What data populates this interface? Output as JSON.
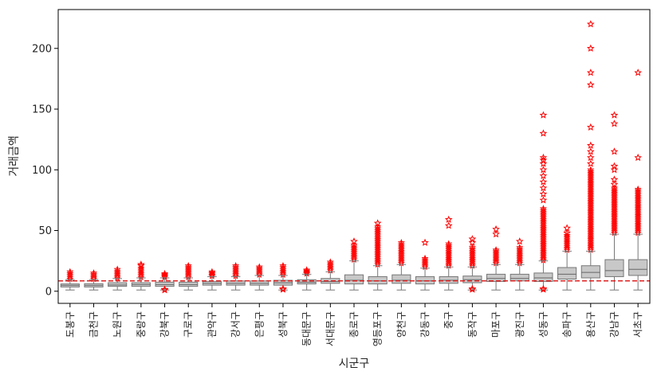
{
  "chart_data": {
    "type": "box",
    "xlabel": "시군구",
    "ylabel": "거래금액",
    "ylim": [
      -10,
      232
    ],
    "yticks": [
      0,
      50,
      100,
      150,
      200
    ],
    "reference_line": {
      "y": 8.5,
      "style": "dashed",
      "color": "#e02020"
    },
    "box_color": "#c8c8c8",
    "outlier_color": "#ff0000",
    "outlier_marker": "star",
    "categories": [
      "도봉구",
      "금천구",
      "노원구",
      "중랑구",
      "강북구",
      "구로구",
      "관악구",
      "강서구",
      "은평구",
      "성북구",
      "동대문구",
      "서대문구",
      "종로구",
      "영등포구",
      "양천구",
      "강동구",
      "중구",
      "동작구",
      "마포구",
      "광진구",
      "성동구",
      "송파구",
      "용산구",
      "강남구",
      "서초구"
    ],
    "boxes": [
      {
        "min": 1,
        "q1": 3.5,
        "median": 4.8,
        "q3": 6,
        "max": 9.5,
        "outlier_range": [
          10,
          16
        ],
        "outliers": []
      },
      {
        "min": 1,
        "q1": 3.5,
        "median": 4.8,
        "q3": 6.2,
        "max": 9.5,
        "outlier_range": [
          10,
          15
        ],
        "outliers": []
      },
      {
        "min": 1,
        "q1": 4,
        "median": 5.2,
        "q3": 7,
        "max": 10.5,
        "outlier_range": [
          11,
          18
        ],
        "outliers": []
      },
      {
        "min": 1,
        "q1": 4,
        "median": 5.5,
        "q3": 7,
        "max": 11,
        "outlier_range": [
          11.5,
          19
        ],
        "outliers": [
          21,
          22
        ]
      },
      {
        "min": 1,
        "q1": 4,
        "median": 5.5,
        "q3": 7.5,
        "max": 11,
        "outlier_range": [
          11.5,
          14.5
        ],
        "outliers": [
          1,
          1.5
        ]
      },
      {
        "min": 1,
        "q1": 4,
        "median": 5.5,
        "q3": 7.5,
        "max": 11,
        "outlier_range": [
          11.5,
          21
        ],
        "outliers": []
      },
      {
        "min": 1,
        "q1": 5,
        "median": 6.5,
        "q3": 8,
        "max": 12,
        "outlier_range": [
          12.5,
          16
        ],
        "outliers": []
      },
      {
        "min": 1,
        "q1": 5,
        "median": 6.5,
        "q3": 8.5,
        "max": 12,
        "outlier_range": [
          12.5,
          21
        ],
        "outliers": []
      },
      {
        "min": 1,
        "q1": 5,
        "median": 6.5,
        "q3": 8.5,
        "max": 13,
        "outlier_range": [
          13.5,
          20
        ],
        "outliers": []
      },
      {
        "min": 1,
        "q1": 5,
        "median": 7,
        "q3": 9,
        "max": 13,
        "outlier_range": [
          13.5,
          21
        ],
        "outliers": [
          1.5,
          2
        ]
      },
      {
        "min": 1,
        "q1": 6,
        "median": 7.5,
        "q3": 9.5,
        "max": 14,
        "outlier_range": [
          14.5,
          17.5
        ],
        "outliers": []
      },
      {
        "min": 1,
        "q1": 6.5,
        "median": 8,
        "q3": 10.5,
        "max": 16,
        "outlier_range": [
          17,
          24
        ],
        "outliers": []
      },
      {
        "min": 1,
        "q1": 6,
        "median": 9,
        "q3": 13.5,
        "max": 25,
        "outlier_range": [
          26,
          38
        ],
        "outliers": [
          41
        ]
      },
      {
        "min": 1,
        "q1": 6,
        "median": 8.5,
        "q3": 12,
        "max": 21,
        "outlier_range": [
          22,
          53
        ],
        "outliers": [
          56
        ]
      },
      {
        "min": 1,
        "q1": 6.5,
        "median": 9,
        "q3": 13.5,
        "max": 22,
        "outlier_range": [
          23,
          40
        ],
        "outliers": []
      },
      {
        "min": 1,
        "q1": 6,
        "median": 8.5,
        "q3": 12,
        "max": 19,
        "outlier_range": [
          20,
          27
        ],
        "outliers": [
          40
        ]
      },
      {
        "min": 1,
        "q1": 6.5,
        "median": 9,
        "q3": 12,
        "max": 20,
        "outlier_range": [
          21,
          39
        ],
        "outliers": [
          54,
          59
        ]
      },
      {
        "min": 1,
        "q1": 7,
        "median": 9.5,
        "q3": 12.5,
        "max": 20,
        "outlier_range": [
          21,
          36
        ],
        "outliers": [
          1.5,
          2,
          40,
          43
        ]
      },
      {
        "min": 1,
        "q1": 8,
        "median": 10.5,
        "q3": 14,
        "max": 22,
        "outlier_range": [
          23,
          34
        ],
        "outliers": [
          47,
          51
        ]
      },
      {
        "min": 1,
        "q1": 8.5,
        "median": 10.5,
        "q3": 14,
        "max": 22,
        "outlier_range": [
          23,
          36
        ],
        "outliers": [
          41
        ]
      },
      {
        "min": 1,
        "q1": 8,
        "median": 11,
        "q3": 15,
        "max": 25,
        "outlier_range": [
          25.5,
          68
        ],
        "outliers": [
          1.5,
          2,
          75,
          80,
          85,
          90,
          95,
          100,
          105,
          108,
          110,
          130,
          145
        ]
      },
      {
        "min": 1,
        "q1": 10,
        "median": 14,
        "q3": 19.5,
        "max": 33,
        "outlier_range": [
          34,
          46
        ],
        "outliers": [
          48,
          52
        ]
      },
      {
        "min": 1,
        "q1": 11,
        "median": 15.5,
        "q3": 21,
        "max": 33,
        "outlier_range": [
          34,
          100
        ],
        "outliers": [
          105,
          110,
          115,
          120,
          135,
          170,
          180,
          200,
          220
        ]
      },
      {
        "min": 1,
        "q1": 12,
        "median": 17,
        "q3": 26,
        "max": 47,
        "outlier_range": [
          48,
          85
        ],
        "outliers": [
          88,
          92,
          100,
          103,
          115,
          138,
          145
        ]
      },
      {
        "min": 1,
        "q1": 13,
        "median": 18,
        "q3": 26,
        "max": 47,
        "outlier_range": [
          48,
          84
        ],
        "outliers": [
          110,
          180
        ]
      }
    ]
  }
}
